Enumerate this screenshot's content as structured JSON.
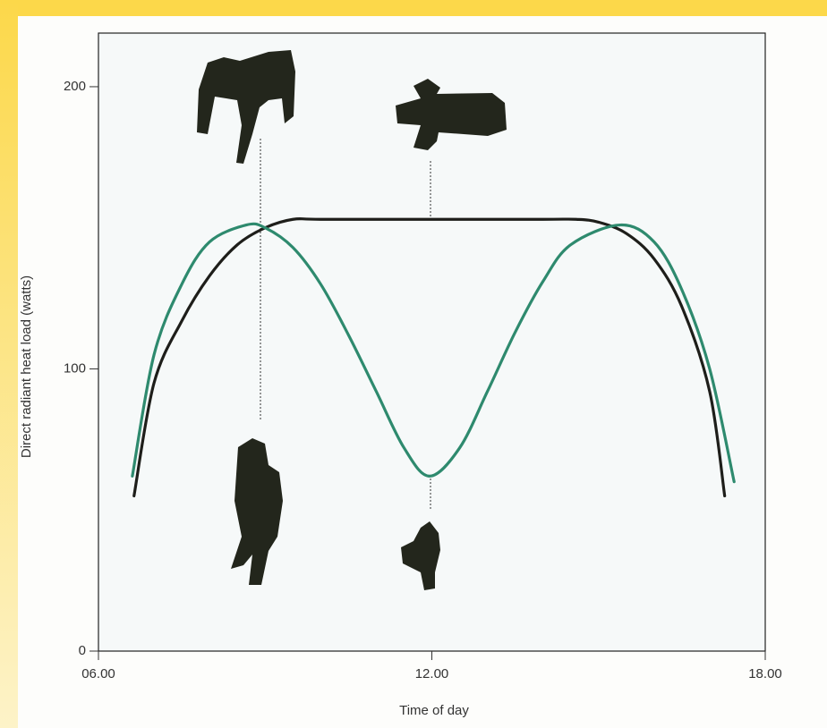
{
  "chart_data": {
    "type": "line",
    "x_label": "Time of day",
    "y_label": "Direct radiant heat load (watts)",
    "xlim": [
      6,
      18
    ],
    "xticks": [
      {
        "value": 6,
        "label": "06.00"
      },
      {
        "value": 12,
        "label": "12.00"
      },
      {
        "value": 18,
        "label": "18.00"
      }
    ],
    "ylim": [
      0,
      219
    ],
    "yticks": [
      0,
      100,
      200
    ],
    "series": [
      {
        "color": "#1e1e1a",
        "x": [
          6.64,
          7.0,
          7.5,
          8.0,
          8.5,
          9.0,
          9.5,
          10.0,
          12.0,
          14.0,
          14.6,
          15.0,
          15.5,
          16.0,
          16.5,
          17.0,
          17.27
        ],
        "values": [
          55,
          95,
          117,
          133,
          144,
          150,
          153,
          153,
          153,
          153,
          153,
          152,
          148,
          139,
          122,
          92,
          55
        ]
      },
      {
        "color": "#2e8a6e",
        "x": [
          6.61,
          7.0,
          7.5,
          8.0,
          8.66,
          9.0,
          9.5,
          10.0,
          10.5,
          11.0,
          11.5,
          11.96,
          12.5,
          13.0,
          13.5,
          14.0,
          14.5,
          15.39,
          16.0,
          16.5,
          17.0,
          17.44
        ],
        "values": [
          62,
          105,
          130,
          145,
          151,
          150,
          143,
          130,
          112,
          92,
          72,
          62,
          72,
          92,
          113,
          131,
          144,
          151,
          145,
          128,
          100,
          60
        ]
      }
    ]
  }
}
